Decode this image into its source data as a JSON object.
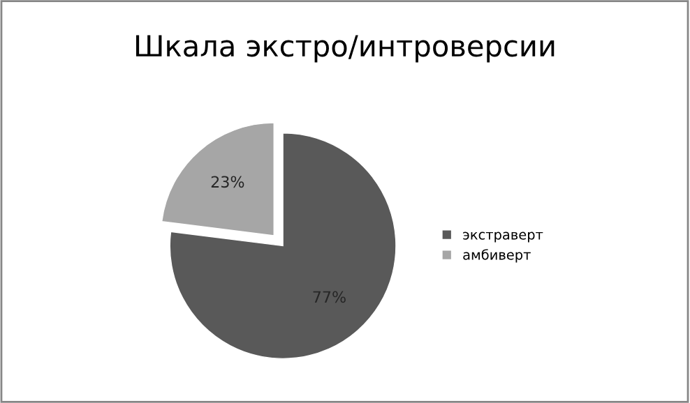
{
  "chart_data": {
    "type": "pie",
    "title": "Шкала экстро/интроверсии",
    "categories": [
      "экстраверт",
      "амбиверт"
    ],
    "values": [
      77,
      23
    ],
    "colors": [
      "#595959",
      "#a6a6a6"
    ],
    "value_labels": [
      "77%",
      "23%"
    ],
    "legend": "right"
  }
}
